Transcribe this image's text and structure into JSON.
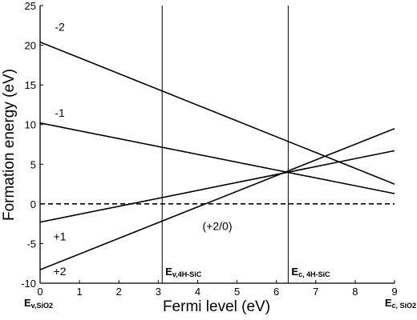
{
  "chart_data": {
    "type": "line",
    "title": "",
    "xlabel": "Fermi level (eV)",
    "ylabel": "Formation energy (eV)",
    "xlim": [
      0,
      9
    ],
    "ylim": [
      -10,
      25
    ],
    "x_ticks": [
      "0",
      "1",
      "2",
      "3",
      "4",
      "5",
      "6",
      "7",
      "8",
      "9"
    ],
    "y_ticks": [
      "-10",
      "-5",
      "0",
      "5",
      "10",
      "15",
      "20",
      "25"
    ],
    "grid": false,
    "series": [
      {
        "name": "-2",
        "x": [
          0,
          9
        ],
        "y": [
          20.4,
          2.5
        ]
      },
      {
        "name": "-1",
        "x": [
          0,
          9
        ],
        "y": [
          10.2,
          1.3
        ]
      },
      {
        "name": "+1",
        "x": [
          0,
          9
        ],
        "y": [
          -2.3,
          6.7
        ]
      },
      {
        "name": "+2",
        "x": [
          0,
          9
        ],
        "y": [
          -8.3,
          9.5
        ]
      }
    ],
    "reference_line": {
      "y": 0,
      "style": "dashed"
    },
    "vertical_lines": [
      {
        "x": 3.1,
        "label_main": "E",
        "label_sub": "v,4H-SiC"
      },
      {
        "x": 6.3,
        "label_main": "E",
        "label_sub": "c, 4H-SiC"
      }
    ],
    "annotations": [
      {
        "text": "(+2/0)",
        "x": 4.5,
        "y": -3.3
      }
    ],
    "axis_end_labels": {
      "left": {
        "main": "E",
        "sub": "v,SiO2"
      },
      "right": {
        "main": "E",
        "sub": "c, SiO2"
      }
    }
  }
}
